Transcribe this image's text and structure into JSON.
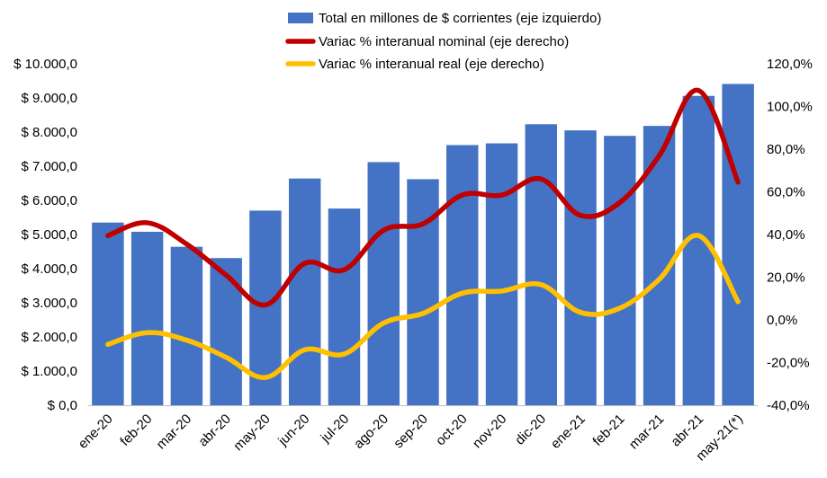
{
  "chart_data": {
    "type": "bar",
    "title": "",
    "categories": [
      "ene-20",
      "feb-20",
      "mar-20",
      "abr-20",
      "may-20",
      "jun-20",
      "jul-20",
      "ago-20",
      "sep-20",
      "oct-20",
      "nov-20",
      "dic-20",
      "ene-21",
      "feb-21",
      "mar-21",
      "abr-21",
      "may-21(*)"
    ],
    "series": [
      {
        "name": "Total en millones de $ corrientes (eje izquierdo)",
        "type": "bar",
        "axis": "left",
        "color": "#4472c4",
        "values": [
          5350,
          5080,
          4640,
          4310,
          5700,
          6640,
          5760,
          7120,
          6620,
          7620,
          7670,
          8230,
          8050,
          7890,
          8180,
          9060,
          9410
        ]
      },
      {
        "name": "Variac % interanual nominal (eje derecho)",
        "type": "line",
        "axis": "right",
        "color": "#c00000",
        "values": [
          39.5,
          45.5,
          35.5,
          21.0,
          7.0,
          26.5,
          23.5,
          42.0,
          45.0,
          58.5,
          58.5,
          66.0,
          49.0,
          55.0,
          77.0,
          107.5,
          64.5
        ]
      },
      {
        "name": "Variac % interanual real (eje derecho)",
        "type": "line",
        "axis": "right",
        "color": "#ffc000",
        "values": [
          -11.5,
          -6.0,
          -9.5,
          -17.5,
          -27.0,
          -14.0,
          -16.0,
          -1.5,
          3.0,
          12.5,
          13.5,
          16.5,
          3.5,
          5.5,
          19.0,
          39.5,
          8.5
        ]
      }
    ],
    "y_left": {
      "min": 0,
      "max": 10000,
      "step": 1000,
      "tick_labels": [
        "$ 0,0",
        "$ 1.000,0",
        "$ 2.000,0",
        "$ 3.000,0",
        "$ 4.000,0",
        "$ 5.000,0",
        "$ 6.000,0",
        "$ 7.000,0",
        "$ 8.000,0",
        "$ 9.000,0",
        "$ 10.000,0"
      ]
    },
    "y_right": {
      "min": -40,
      "max": 120,
      "step": 20,
      "tick_labels": [
        "-40,0%",
        "-20,0%",
        "0,0%",
        "20,0%",
        "40,0%",
        "60,0%",
        "80,0%",
        "100,0%",
        "120,0%"
      ]
    },
    "xlabel": "",
    "ylabel": "",
    "grid": false,
    "legend_position": "top"
  }
}
